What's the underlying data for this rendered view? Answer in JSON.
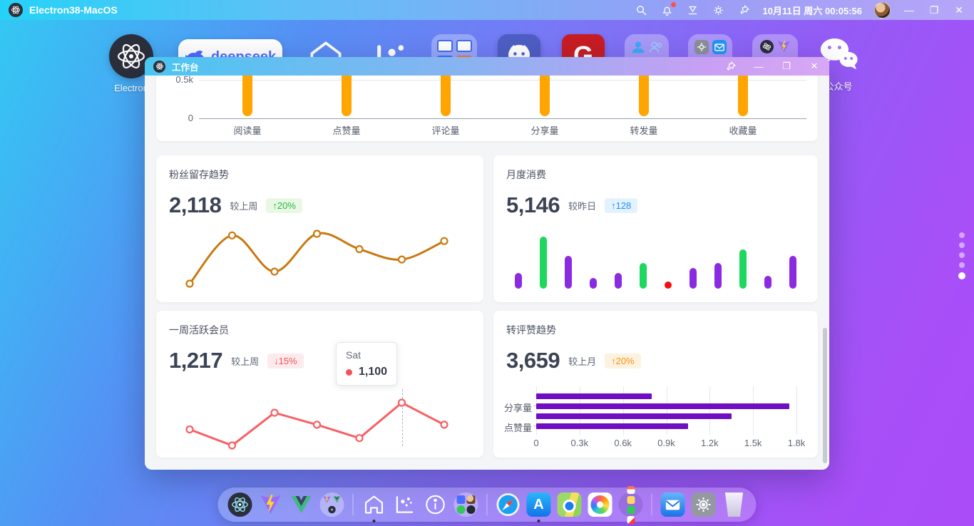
{
  "colors": {
    "top_bar_orange": "#ffa502",
    "fan_line_bronze": "#c9790f",
    "monthly_purple": "#8a2be2",
    "monthly_green": "#1ed75f",
    "monthly_red": "#f50d0d",
    "weekly_line_red": "#f76065",
    "trend_bar_purple": "#6f0ec2",
    "badge_green": "#28b93e",
    "badge_blue": "#1e90ff",
    "badge_red": "#f5515c",
    "badge_orange": "#fa9014"
  },
  "menubar": {
    "app_title": "Electron38-MacOS",
    "datetime": "10月11日 周六 00:05:56",
    "icons": [
      "search",
      "notifications",
      "theme-fill",
      "settings",
      "pin"
    ],
    "controls": {
      "minimize": "—",
      "maximize": "❐",
      "close": "✕"
    }
  },
  "desktop": {
    "icons": [
      {
        "id": "electron",
        "label": "Electron"
      },
      {
        "id": "deepseek",
        "label": "deepseek"
      },
      {
        "id": "home-outline",
        "label": ""
      },
      {
        "id": "analytics-outline",
        "label": ""
      },
      {
        "id": "tables-folder",
        "label": ""
      },
      {
        "id": "github",
        "label": ""
      },
      {
        "id": "gitee",
        "label": "G"
      },
      {
        "id": "contacts-folder",
        "label": ""
      },
      {
        "id": "utilities-folder",
        "label": ""
      },
      {
        "id": "devtools-folder",
        "label": ""
      },
      {
        "id": "wechat",
        "label": "公众号"
      }
    ],
    "page_dots_total": 5,
    "page_dots_active_index": 4
  },
  "window": {
    "title": "工作台",
    "controls": {
      "minimize": "—",
      "maximize": "❐",
      "close": "✕"
    },
    "cards": {
      "top": {
        "chart_data": {
          "type": "bar",
          "categories": [
            "阅读量",
            "点赞量",
            "评论量",
            "分享量",
            "转发量",
            "收藏量"
          ],
          "y_ticks": [
            "0.5k",
            "0"
          ],
          "bar_color": "#ffa502",
          "clipped_top": true
        }
      },
      "fans": {
        "title": "粉丝留存趋势",
        "value": "2,118",
        "compare": "较上周",
        "badge_text": "↑20%",
        "chart_data": {
          "type": "line",
          "smooth": true,
          "color": "#c9790f",
          "values": [
            25,
            85,
            40,
            87,
            68,
            55,
            78
          ]
        }
      },
      "monthly": {
        "title": "月度消费",
        "value": "5,146",
        "compare": "较昨日",
        "badge_text": "↑128",
        "chart_data": {
          "type": "bar",
          "values": [
            30,
            100,
            63,
            20,
            30,
            50,
            10,
            40,
            50,
            75,
            25,
            63
          ],
          "colors": [
            "#8a2be2",
            "#1ed75f",
            "#8a2be2",
            "#8a2be2",
            "#8a2be2",
            "#1ed75f",
            "#f50d0d",
            "#8a2be2",
            "#8a2be2",
            "#1ed75f",
            "#8a2be2",
            "#8a2be2"
          ]
        }
      },
      "weekly": {
        "title": "一周活跃会员",
        "value": "1,217",
        "compare": "较上周",
        "badge_text": "↓15%",
        "tooltip": {
          "label": "Sat",
          "value": "1,100"
        },
        "chart_data": {
          "type": "line",
          "smooth": false,
          "color": "#f76065",
          "values": [
            900,
            780,
            1025,
            935,
            835,
            1100,
            935
          ],
          "highlight_index": 5
        }
      },
      "trend": {
        "title": "转评赞趋势",
        "value": "3,659",
        "compare": "较上月",
        "badge_text": "↑20%",
        "chart_data": {
          "type": "bar",
          "orientation": "horizontal",
          "color": "#6f0ec2",
          "values": [
            800,
            1750,
            1350,
            1050
          ],
          "axis_labels": [
            "分享量",
            "点赞量"
          ],
          "x_ticks": [
            "0",
            "0.3k",
            "0.6k",
            "0.9k",
            "1.2k",
            "1.5k",
            "1.8k"
          ],
          "xlim": [
            0,
            1800
          ]
        }
      }
    }
  },
  "dock": {
    "items": [
      "electron",
      "vite",
      "vue",
      "dev-folder",
      "home",
      "analytics",
      "about",
      "social-folder",
      "safari",
      "app-store",
      "maps",
      "photos",
      "apps-folder",
      "mail",
      "settings",
      "trash"
    ],
    "active_items": [
      "home",
      "app-store"
    ]
  }
}
